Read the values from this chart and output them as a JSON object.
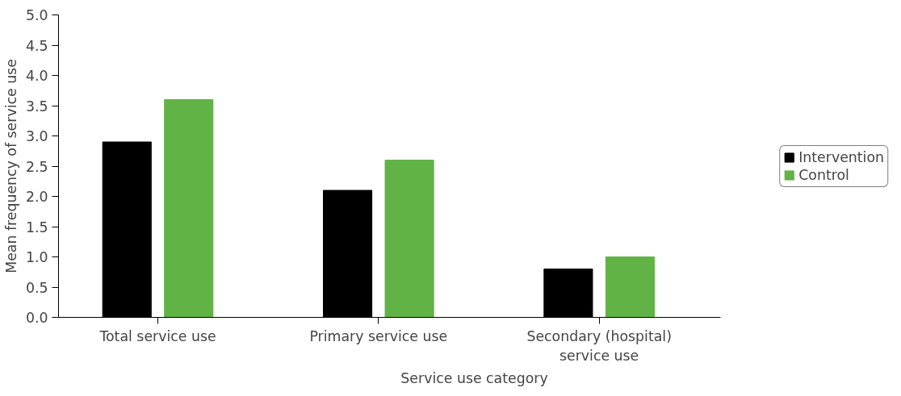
{
  "chart_data": {
    "type": "bar",
    "xlabel": "Service use category",
    "ylabel": "Mean frequency of service use",
    "categories": [
      "Total service use",
      "Primary service use",
      "Secondary (hospital) service use"
    ],
    "series": [
      {
        "name": "Intervention",
        "color": "#000000",
        "values": [
          2.9,
          2.1,
          0.8
        ]
      },
      {
        "name": "Control",
        "color": "#62b346",
        "values": [
          3.6,
          2.6,
          1.0
        ]
      }
    ],
    "ylim": [
      0,
      5
    ],
    "yticks": [
      {
        "value": 0,
        "label": "0.0"
      },
      {
        "value": 0.5,
        "label": "0.5"
      },
      {
        "value": 1,
        "label": "1.0"
      },
      {
        "value": 1.5,
        "label": "1.5"
      },
      {
        "value": 2,
        "label": "2.0"
      },
      {
        "value": 2.5,
        "label": "2.5"
      },
      {
        "value": 3,
        "label": "3.0"
      },
      {
        "value": 3.5,
        "label": "3.5"
      },
      {
        "value": 4,
        "label": "4.0"
      },
      {
        "value": 4.5,
        "label": "4.5"
      },
      {
        "value": 5,
        "label": "5.0"
      }
    ],
    "grid": false,
    "legend": "right"
  }
}
